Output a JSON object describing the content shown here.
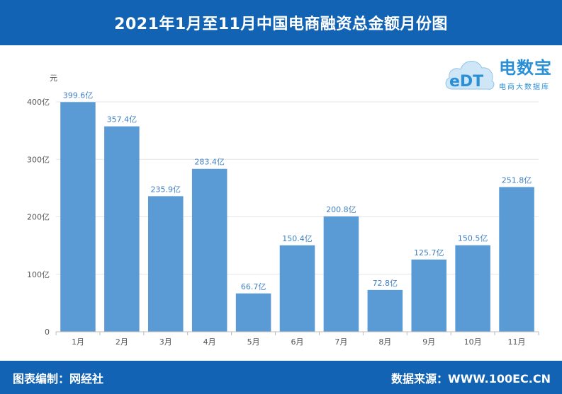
{
  "header": {
    "title": "2021年1月至11月中国电商融资总金额月份图"
  },
  "logo": {
    "mark_text": "eDT",
    "name": "电数宝",
    "subtitle": "电商大数据库",
    "color": "#2b8fd6"
  },
  "footer": {
    "left": "图表编制：网经社",
    "right": "数据来源：WWW.100EC.CN"
  },
  "colors": {
    "header_bg": "#1263b4",
    "bar": "#5b9bd5",
    "bar_label": "#3f7fc4"
  },
  "chart_data": {
    "type": "bar",
    "title": "2021年1月至11月中国电商融资总金额月份图",
    "ylabel": "元",
    "xlabel": "",
    "categories": [
      "1月",
      "2月",
      "3月",
      "4月",
      "5月",
      "6月",
      "7月",
      "8月",
      "9月",
      "10月",
      "11月"
    ],
    "values": [
      399.6,
      357.4,
      235.9,
      283.4,
      66.7,
      150.4,
      200.8,
      72.8,
      125.7,
      150.5,
      251.8
    ],
    "value_labels": [
      "399.6亿",
      "357.4亿",
      "235.9亿",
      "283.4亿",
      "66.7亿",
      "150.4亿",
      "200.8亿",
      "72.8亿",
      "125.7亿",
      "150.5亿",
      "251.8亿"
    ],
    "ylim": [
      0,
      400
    ],
    "yticks": [
      0,
      100,
      200,
      300,
      400
    ],
    "ytick_labels": [
      "0",
      "100亿",
      "200亿",
      "300亿",
      "400亿"
    ],
    "grid": true
  }
}
